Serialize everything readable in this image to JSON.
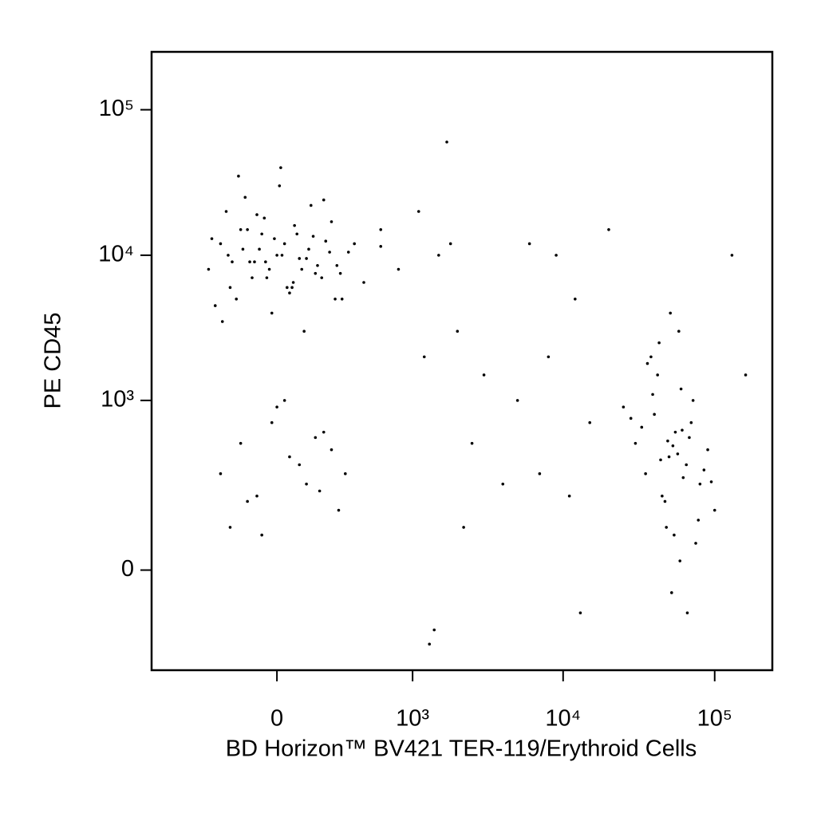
{
  "chart_data": {
    "type": "scatter",
    "scale": "biexponential",
    "xlabel": "BD Horizon™ BV421 TER-119/Erythroid Cells",
    "ylabel": "PE CD45",
    "xlim": [
      -850,
      240000
    ],
    "ylim": [
      -320,
      250000
    ],
    "xticks": [
      0,
      {
        "value": 1000,
        "label": "10³"
      },
      {
        "value": 10000,
        "label": "10⁴"
      },
      {
        "value": 100000,
        "label": "10⁵"
      }
    ],
    "yticks": [
      0,
      {
        "value": 1000,
        "label": "10³"
      },
      {
        "value": 10000,
        "label": "10⁴"
      },
      {
        "value": 100000,
        "label": "10⁵"
      }
    ],
    "color": "#000000",
    "x": [
      -320,
      -250,
      -200,
      -150,
      -110,
      -70,
      -40,
      -10,
      20,
      50,
      80,
      120,
      160,
      210,
      270,
      340,
      450,
      600,
      -280,
      -220,
      -170,
      -130,
      -90,
      -50,
      -20,
      10,
      40,
      70,
      100,
      140,
      190,
      240,
      300,
      380,
      -300,
      -190,
      -140,
      -100,
      -60,
      -30,
      0,
      30,
      60,
      90,
      130,
      170,
      230,
      290,
      -240,
      -160,
      -80,
      15,
      110,
      200,
      -210,
      -120,
      -45,
      65,
      150,
      260,
      30000,
      35000,
      40000,
      45000,
      50000,
      55000,
      60000,
      65000,
      70000,
      80000,
      90000,
      100000,
      25000,
      38000,
      48000,
      58000,
      68000,
      75000,
      42000,
      52000,
      33000,
      44000,
      53000,
      62000,
      72000,
      85000,
      47000,
      57000,
      36000,
      66000,
      28000,
      49000,
      54000,
      61000,
      43000,
      78000,
      95000,
      51000,
      39000,
      59000,
      -250,
      -150,
      -80,
      -20,
      50,
      120,
      200,
      280,
      -200,
      0,
      90,
      160,
      -120,
      240,
      30,
      -60,
      180,
      320,
      600,
      800,
      1200,
      1500,
      1800,
      2000,
      2500,
      3000,
      1300,
      1100,
      5000,
      7000,
      9000,
      12000,
      15000,
      8000,
      11000,
      20000,
      13000,
      1700,
      2200,
      4000,
      6000,
      160000,
      130000,
      1400
    ],
    "y": [
      8000,
      12000,
      6000,
      15000,
      9000,
      11000,
      7000,
      13000,
      10000,
      5500,
      14000,
      9500,
      7500,
      12500,
      8500,
      10500,
      6500,
      11500,
      4500,
      20000,
      5000,
      25000,
      9000,
      18000,
      4000,
      30000,
      6000,
      16000,
      8000,
      22000,
      7000,
      17000,
      5000,
      12000,
      13000,
      9000,
      11000,
      7000,
      14000,
      8000,
      10000,
      12000,
      6000,
      9500,
      11000,
      8500,
      10500,
      7500,
      3500,
      35000,
      19000,
      40000,
      3000,
      24000,
      10000,
      15000,
      9000,
      6500,
      13500,
      5000,
      500,
      300,
      800,
      200,
      400,
      600,
      1200,
      350,
      700,
      250,
      450,
      150,
      900,
      2000,
      100,
      3000,
      550,
      60,
      1500,
      -50,
      650,
      380,
      480,
      280,
      1000,
      320,
      180,
      420,
      1800,
      -100,
      750,
      520,
      80,
      620,
      2500,
      120,
      260,
      4000,
      1100,
      20,
      300,
      500,
      200,
      700,
      400,
      250,
      600,
      150,
      100,
      900,
      350,
      550,
      180,
      450,
      1000,
      80,
      220,
      300,
      15000,
      8000,
      2000,
      10000,
      12000,
      3000,
      500,
      1500,
      -200,
      20000,
      1000,
      300,
      10000,
      5000,
      700,
      2000,
      200,
      15000,
      -100,
      60000,
      100,
      250,
      12000,
      1500,
      10000,
      -150
    ]
  }
}
